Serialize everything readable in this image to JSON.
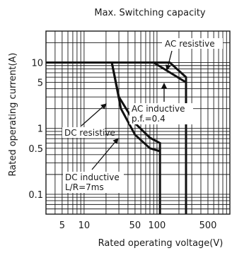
{
  "chart_data": {
    "type": "line",
    "title": "Max. Switching capacity",
    "xlabel": "Rated operating voltage(V)",
    "ylabel": "Rated operating current(A)",
    "xscale": "log",
    "yscale": "log",
    "xlim": [
      3,
      1000
    ],
    "ylim": [
      0.05,
      30
    ],
    "x_ticks": [
      5,
      10,
      50,
      100,
      500
    ],
    "x_tick_labels": [
      "5",
      "10",
      "50",
      "100",
      "500"
    ],
    "y_ticks": [
      0.1,
      0.5,
      1,
      5,
      10
    ],
    "y_tick_labels": [
      "0.1",
      "0.5",
      "1",
      "5",
      "10"
    ],
    "grid": true,
    "series": [
      {
        "name": "AC resistive",
        "x": [
          3,
          150,
          250,
          250
        ],
        "y": [
          10,
          10,
          6,
          0.05
        ]
      },
      {
        "name": "AC inductive p.f.=0.4",
        "x": [
          70,
          90,
          250
        ],
        "y": [
          10,
          10,
          5
        ]
      },
      {
        "name": "DC resistive",
        "x": [
          3,
          24,
          30,
          50,
          80,
          110,
          110
        ],
        "y": [
          10,
          10,
          3,
          1.2,
          0.72,
          0.6,
          0.05
        ]
      },
      {
        "name": "DC inductive L/R=7ms",
        "x": [
          24,
          32,
          50,
          80,
          110
        ],
        "y": [
          10,
          2,
          0.8,
          0.5,
          0.45
        ]
      }
    ],
    "annotations": [
      {
        "text": "AC resistive"
      },
      {
        "text": "AC inductive",
        "text2": "p.f.=0.4"
      },
      {
        "text": "DC resistive"
      },
      {
        "text": "DC inductive",
        "text2": "L/R=7ms"
      }
    ]
  }
}
